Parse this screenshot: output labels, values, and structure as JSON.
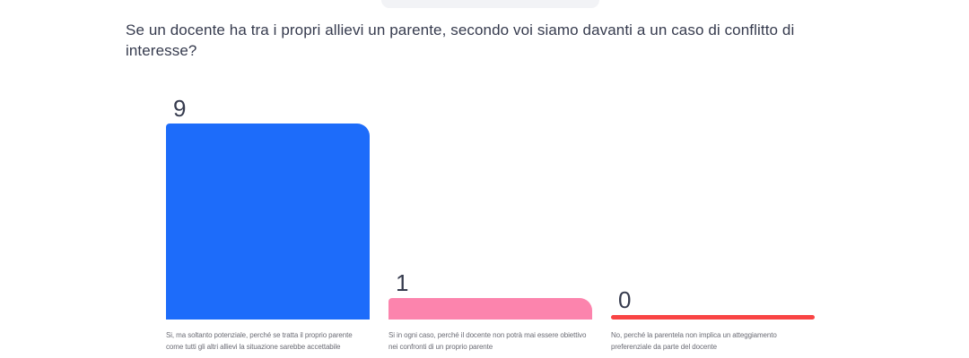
{
  "chart_data": {
    "type": "bar",
    "title": "Se un docente ha tra i propri allievi un parente, secondo voi siamo davanti a un caso di conflitto di interesse?",
    "categories": [
      "Si, ma soltanto potenziale, perché se tratta il proprio parente\ncome tutti gli altri allievi la situazione sarebbe accettabile",
      "Si in ogni caso, perché il docente non potrà mai essere obiettivo\nnei confronti di un proprio parente",
      "No, perché la parentela non implica un atteggiamento\npreferenziale da parte del docente"
    ],
    "values": [
      9,
      1,
      0
    ],
    "bar_colors": [
      "#1d6cfa",
      "#fc84ad",
      "#f94444"
    ],
    "ylim": [
      0,
      9
    ],
    "grid": false,
    "legend": false,
    "value_label_position": "above-bar-left"
  },
  "colors": {
    "background": "#ffffff",
    "question_text": "#363b4e",
    "value_label_text": "#363b4e",
    "caption_text": "#6b6c75",
    "top_pill": "#f2f3f6"
  }
}
